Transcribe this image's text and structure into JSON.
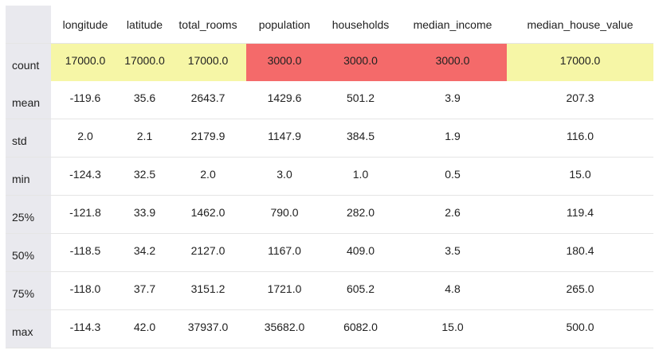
{
  "table": {
    "columns": [
      "longitude",
      "latitude",
      "total_rooms",
      "population",
      "households",
      "median_income",
      "median_house_value"
    ],
    "rows": [
      {
        "label": "count",
        "values": [
          "17000.0",
          "17000.0",
          "17000.0",
          "3000.0",
          "3000.0",
          "3000.0",
          "17000.0"
        ],
        "highlight": [
          "yellow",
          "yellow",
          "yellow",
          "red",
          "red",
          "red",
          "yellow"
        ]
      },
      {
        "label": "mean",
        "values": [
          "-119.6",
          "35.6",
          "2643.7",
          "1429.6",
          "501.2",
          "3.9",
          "207.3"
        ]
      },
      {
        "label": "std",
        "values": [
          "2.0",
          "2.1",
          "2179.9",
          "1147.9",
          "384.5",
          "1.9",
          "116.0"
        ]
      },
      {
        "label": "min",
        "values": [
          "-124.3",
          "32.5",
          "2.0",
          "3.0",
          "1.0",
          "0.5",
          "15.0"
        ]
      },
      {
        "label": "25%",
        "values": [
          "-121.8",
          "33.9",
          "1462.0",
          "790.0",
          "282.0",
          "2.6",
          "119.4"
        ]
      },
      {
        "label": "50%",
        "values": [
          "-118.5",
          "34.2",
          "2127.0",
          "1167.0",
          "409.0",
          "3.5",
          "180.4"
        ]
      },
      {
        "label": "75%",
        "values": [
          "-118.0",
          "37.7",
          "3151.2",
          "1721.0",
          "605.2",
          "4.8",
          "265.0"
        ]
      },
      {
        "label": "max",
        "values": [
          "-114.3",
          "42.0",
          "37937.0",
          "35682.0",
          "6082.0",
          "15.0",
          "500.0"
        ]
      }
    ]
  },
  "colors": {
    "highlight_yellow": "#f6f6a6",
    "highlight_red": "#f46a6a",
    "index_background": "#e9e9ee"
  }
}
